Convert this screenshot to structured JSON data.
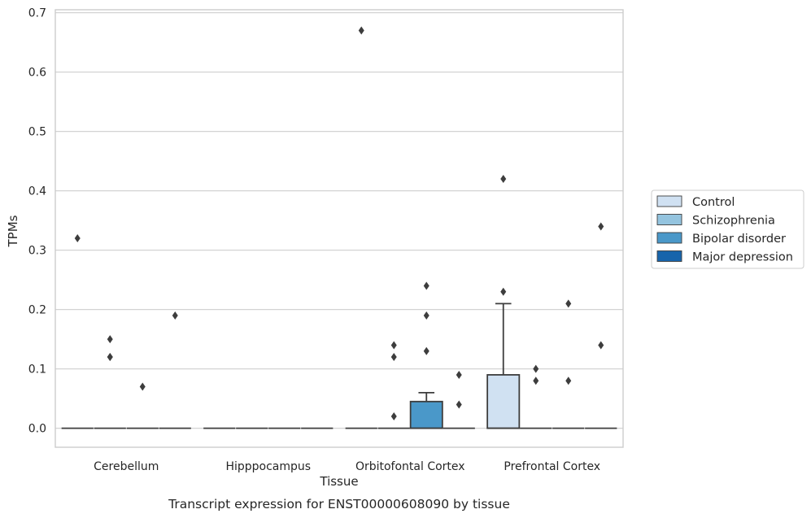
{
  "chart_data": {
    "type": "box",
    "title": "",
    "caption": "Transcript expression for ENST00000608090 by tissue",
    "xlabel": "Tissue",
    "ylabel": "TPMs",
    "ylim": [
      -0.032,
      0.705
    ],
    "yticks": [
      "0.0",
      "0.1",
      "0.2",
      "0.3",
      "0.4",
      "0.5",
      "0.6",
      "0.7"
    ],
    "ytick_values": [
      0,
      0.1,
      0.2,
      0.3,
      0.4,
      0.5,
      0.6,
      0.7
    ],
    "grid": "horizontal",
    "legend_position": "right",
    "categories": [
      "Cerebellum",
      "Hipppocampus",
      "Orbitofontal Cortex",
      "Prefrontal Cortex"
    ],
    "series": [
      {
        "name": "Control",
        "color": "#d0e1f2",
        "boxes": [
          {
            "q1": 0,
            "median": 0,
            "q3": 0,
            "whisker_low": 0,
            "whisker_high": 0,
            "outliers": [
              0.32
            ]
          },
          {
            "q1": 0,
            "median": 0,
            "q3": 0,
            "whisker_low": 0,
            "whisker_high": 0,
            "outliers": []
          },
          {
            "q1": 0,
            "median": 0,
            "q3": 0,
            "whisker_low": 0,
            "whisker_high": 0,
            "outliers": [
              0.67
            ]
          },
          {
            "q1": 0,
            "median": 0,
            "q3": 0.09,
            "whisker_low": 0,
            "whisker_high": 0.21,
            "outliers": [
              0.42,
              0.23
            ]
          }
        ]
      },
      {
        "name": "Schizophrenia",
        "color": "#94c4df",
        "boxes": [
          {
            "q1": 0,
            "median": 0,
            "q3": 0,
            "whisker_low": 0,
            "whisker_high": 0,
            "outliers": [
              0.15,
              0.12,
              0.12
            ]
          },
          {
            "q1": 0,
            "median": 0,
            "q3": 0,
            "whisker_low": 0,
            "whisker_high": 0,
            "outliers": []
          },
          {
            "q1": 0,
            "median": 0,
            "q3": 0,
            "whisker_low": 0,
            "whisker_high": 0,
            "outliers": [
              0.14,
              0.12,
              0.02
            ]
          },
          {
            "q1": 0,
            "median": 0,
            "q3": 0,
            "whisker_low": 0,
            "whisker_high": 0,
            "outliers": [
              0.1,
              0.08
            ]
          }
        ]
      },
      {
        "name": "Bipolar disorder",
        "color": "#4a98c9",
        "boxes": [
          {
            "q1": 0,
            "median": 0,
            "q3": 0,
            "whisker_low": 0,
            "whisker_high": 0,
            "outliers": [
              0.07
            ]
          },
          {
            "q1": 0,
            "median": 0,
            "q3": 0,
            "whisker_low": 0,
            "whisker_high": 0,
            "outliers": []
          },
          {
            "q1": 0,
            "median": 0,
            "q3": 0.045,
            "whisker_low": 0,
            "whisker_high": 0.06,
            "outliers": [
              0.24,
              0.19,
              0.13
            ]
          },
          {
            "q1": 0,
            "median": 0,
            "q3": 0,
            "whisker_low": 0,
            "whisker_high": 0,
            "outliers": [
              0.21,
              0.08
            ]
          }
        ]
      },
      {
        "name": "Major depression",
        "color": "#1764ab",
        "boxes": [
          {
            "q1": 0,
            "median": 0,
            "q3": 0,
            "whisker_low": 0,
            "whisker_high": 0,
            "outliers": [
              0.19
            ]
          },
          {
            "q1": 0,
            "median": 0,
            "q3": 0,
            "whisker_low": 0,
            "whisker_high": 0,
            "outliers": []
          },
          {
            "q1": 0,
            "median": 0,
            "q3": 0,
            "whisker_low": 0,
            "whisker_high": 0,
            "outliers": [
              0.09,
              0.04
            ]
          },
          {
            "q1": 0,
            "median": 0,
            "q3": 0,
            "whisker_low": 0,
            "whisker_high": 0,
            "outliers": [
              0.34,
              0.14
            ]
          }
        ]
      }
    ],
    "colors": {
      "edge": "#3d3d3d",
      "grid": "#d3d3d3",
      "frame": "#cccccc",
      "text": "#262626"
    }
  }
}
